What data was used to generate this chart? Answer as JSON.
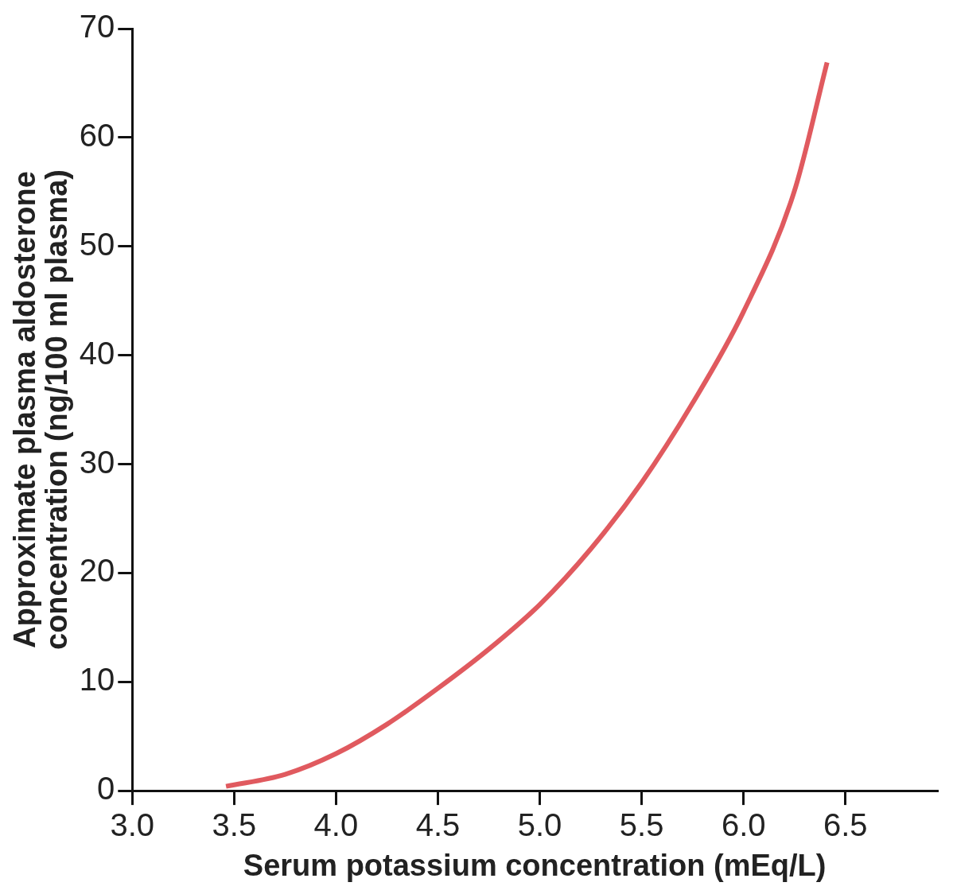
{
  "chart_data": {
    "type": "line",
    "xlabel": "Serum potassium concentration (mEq/L)",
    "ylabel": "Approximate plasma aldosterone concentration (ng/100 ml plasma)",
    "x": [
      3.46,
      3.75,
      4.0,
      4.25,
      4.5,
      4.75,
      5.0,
      5.25,
      5.5,
      5.75,
      6.0,
      6.25,
      6.41
    ],
    "series": [
      {
        "color": "#e05a5f",
        "values": [
          0.4,
          1.5,
          3.4,
          6.1,
          9.4,
          13.0,
          17.1,
          22.2,
          28.3,
          35.6,
          44.0,
          55.1,
          66.9
        ]
      }
    ],
    "xlim": [
      3.0,
      6.95
    ],
    "xticks": [
      {
        "value": 3,
        "label": "3.0"
      },
      3.5,
      {
        "value": 4,
        "label": "4.0"
      },
      4.5,
      {
        "value": 5,
        "label": "5.0"
      },
      5.5,
      {
        "value": 6,
        "label": "6.0"
      },
      6.5
    ],
    "ylim": [
      0,
      70
    ],
    "yticks": [
      0,
      10,
      20,
      30,
      40,
      50,
      60,
      70
    ],
    "grid": false,
    "legend": false,
    "marker": "none",
    "line_style": "solid"
  }
}
